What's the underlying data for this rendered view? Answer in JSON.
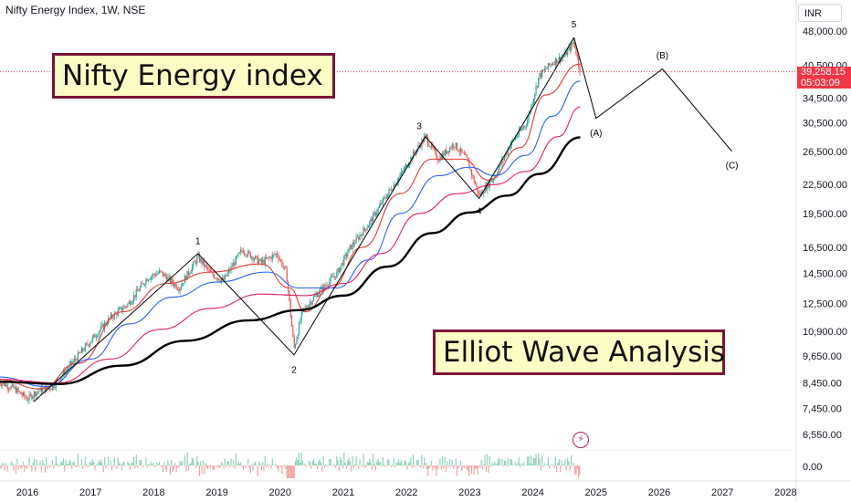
{
  "header": {
    "title": "Nifty Energy Index, 1W, NSE"
  },
  "currency_label": "INR",
  "annotations": {
    "top_left": "Nifty Energy index",
    "bottom_right": "Elliot Wave Analysis"
  },
  "last_price": {
    "value": "39,258.15",
    "countdown": "05:03:09"
  },
  "colors": {
    "up": "#26a69a",
    "down": "#ef5350",
    "ema_red": "#e53935",
    "ema_blue": "#2962ff",
    "ema_magenta": "#e91e63",
    "ema_black": "#000000",
    "price_tag": "#f23645",
    "annotation_bg": "#fdfcc4",
    "annotation_border": "#7b1436"
  },
  "icons": {
    "bolt": "lightning-bolt-icon"
  },
  "chart_data": {
    "type": "line",
    "scale": "log",
    "x_ticks": [
      "2016",
      "2017",
      "2018",
      "2019",
      "2020",
      "2021",
      "2022",
      "2023",
      "2024",
      "2025",
      "2026",
      "2027",
      "2028"
    ],
    "y_ticks": [
      {
        "label": "48,000.00",
        "value": 48000
      },
      {
        "label": "40,500.00",
        "value": 40500
      },
      {
        "label": "34,500.00",
        "value": 34500
      },
      {
        "label": "30,500.00",
        "value": 30500
      },
      {
        "label": "26,500.00",
        "value": 26500
      },
      {
        "label": "22,500.00",
        "value": 22500
      },
      {
        "label": "19,500.00",
        "value": 19500
      },
      {
        "label": "16,500.00",
        "value": 16500
      },
      {
        "label": "14,500.00",
        "value": 14500
      },
      {
        "label": "12,500.00",
        "value": 12500
      },
      {
        "label": "10,900.00",
        "value": 10900
      },
      {
        "label": "9,650.00",
        "value": 9650
      },
      {
        "label": "8,450.00",
        "value": 8450
      },
      {
        "label": "7,450.00",
        "value": 7450
      },
      {
        "label": "6,550.00",
        "value": 6550
      }
    ],
    "oscillator_tick": "0.00",
    "price_series": {
      "name": "",
      "points": [
        [
          2015.55,
          8500
        ],
        [
          2015.8,
          8200
        ],
        [
          2016.0,
          7800
        ],
        [
          2016.15,
          8100
        ],
        [
          2016.4,
          8300
        ],
        [
          2016.7,
          9300
        ],
        [
          2017.0,
          10400
        ],
        [
          2017.3,
          11600
        ],
        [
          2017.6,
          12500
        ],
        [
          2017.9,
          14200
        ],
        [
          2018.1,
          14600
        ],
        [
          2018.4,
          13500
        ],
        [
          2018.7,
          15700
        ],
        [
          2018.9,
          14500
        ],
        [
          2019.1,
          14000
        ],
        [
          2019.4,
          16300
        ],
        [
          2019.7,
          15300
        ],
        [
          2019.95,
          16000
        ],
        [
          2020.1,
          14500
        ],
        [
          2020.22,
          10000
        ],
        [
          2020.35,
          12000
        ],
        [
          2020.6,
          13200
        ],
        [
          2020.9,
          14500
        ],
        [
          2021.1,
          16400
        ],
        [
          2021.4,
          18500
        ],
        [
          2021.7,
          21500
        ],
        [
          2021.9,
          23500
        ],
        [
          2022.1,
          26000
        ],
        [
          2022.3,
          28500
        ],
        [
          2022.5,
          25500
        ],
        [
          2022.75,
          27500
        ],
        [
          2022.95,
          25500
        ],
        [
          2023.15,
          21300
        ],
        [
          2023.4,
          23500
        ],
        [
          2023.65,
          27500
        ],
        [
          2023.9,
          30500
        ],
        [
          2024.1,
          38500
        ],
        [
          2024.3,
          41000
        ],
        [
          2024.5,
          42500
        ],
        [
          2024.65,
          45500
        ],
        [
          2024.75,
          39258
        ]
      ]
    },
    "ema_series": [
      {
        "color_key": "ema_red",
        "points": [
          [
            2015.55,
            8600
          ],
          [
            2016.2,
            8200
          ],
          [
            2016.8,
            9300
          ],
          [
            2017.5,
            12000
          ],
          [
            2018.2,
            13800
          ],
          [
            2018.9,
            14600
          ],
          [
            2019.7,
            15200
          ],
          [
            2020.15,
            13500
          ],
          [
            2020.4,
            12000
          ],
          [
            2020.8,
            13500
          ],
          [
            2021.3,
            16500
          ],
          [
            2021.9,
            21500
          ],
          [
            2022.4,
            25500
          ],
          [
            2022.9,
            25500
          ],
          [
            2023.3,
            23000
          ],
          [
            2023.8,
            27000
          ],
          [
            2024.2,
            35000
          ],
          [
            2024.75,
            40800
          ]
        ]
      },
      {
        "color_key": "ema_blue",
        "points": [
          [
            2015.55,
            8700
          ],
          [
            2016.3,
            8300
          ],
          [
            2017.0,
            9500
          ],
          [
            2017.6,
            11300
          ],
          [
            2018.3,
            12900
          ],
          [
            2019.0,
            13900
          ],
          [
            2019.8,
            14600
          ],
          [
            2020.3,
            13500
          ],
          [
            2020.9,
            13500
          ],
          [
            2021.4,
            15500
          ],
          [
            2021.9,
            19500
          ],
          [
            2022.5,
            23500
          ],
          [
            2023.0,
            24500
          ],
          [
            2023.4,
            23500
          ],
          [
            2023.9,
            26000
          ],
          [
            2024.3,
            31500
          ],
          [
            2024.75,
            37500
          ]
        ]
      },
      {
        "color_key": "ema_magenta",
        "points": [
          [
            2015.55,
            8600
          ],
          [
            2016.5,
            8450
          ],
          [
            2017.3,
            9500
          ],
          [
            2018.1,
            11000
          ],
          [
            2018.9,
            12200
          ],
          [
            2019.7,
            13100
          ],
          [
            2020.4,
            13000
          ],
          [
            2021.0,
            13800
          ],
          [
            2021.6,
            16000
          ],
          [
            2022.2,
            19500
          ],
          [
            2022.8,
            21500
          ],
          [
            2023.4,
            22500
          ],
          [
            2023.9,
            24000
          ],
          [
            2024.4,
            28500
          ],
          [
            2024.75,
            33000
          ]
        ]
      },
      {
        "color_key": "ema_black",
        "points": [
          [
            2015.55,
            8500
          ],
          [
            2016.5,
            8400
          ],
          [
            2017.5,
            9200
          ],
          [
            2018.5,
            10400
          ],
          [
            2019.5,
            11500
          ],
          [
            2020.3,
            12100
          ],
          [
            2021.0,
            13000
          ],
          [
            2021.7,
            15000
          ],
          [
            2022.4,
            17700
          ],
          [
            2023.0,
            19600
          ],
          [
            2023.6,
            21300
          ],
          [
            2024.1,
            23700
          ],
          [
            2024.75,
            28400
          ]
        ]
      }
    ],
    "waves": {
      "impulse": {
        "points": [
          [
            2016.1,
            7700
          ],
          [
            2018.7,
            16000
          ],
          [
            2020.22,
            9700
          ],
          [
            2022.3,
            28500
          ],
          [
            2023.15,
            21000
          ],
          [
            2024.65,
            46500
          ]
        ],
        "labels": [
          {
            "label": "1",
            "at": [
              2018.7,
              17000
            ]
          },
          {
            "label": "2",
            "at": [
              2020.22,
              9000
            ]
          },
          {
            "label": "3",
            "at": [
              2022.2,
              30000
            ]
          },
          {
            "label": "4",
            "at": [
              2023.15,
              19700
            ]
          },
          {
            "label": "5",
            "at": [
              2024.65,
              49500
            ]
          }
        ]
      },
      "correction": {
        "points": [
          [
            2024.65,
            46500
          ],
          [
            2025.0,
            31200
          ],
          [
            2026.05,
            39800
          ],
          [
            2027.15,
            26500
          ]
        ],
        "labels": [
          {
            "label": "(A)",
            "at": [
              2025.0,
              29000
            ]
          },
          {
            "label": "(B)",
            "at": [
              2026.05,
              42500
            ]
          },
          {
            "label": "(C)",
            "at": [
              2027.15,
              24700
            ]
          }
        ]
      }
    }
  }
}
